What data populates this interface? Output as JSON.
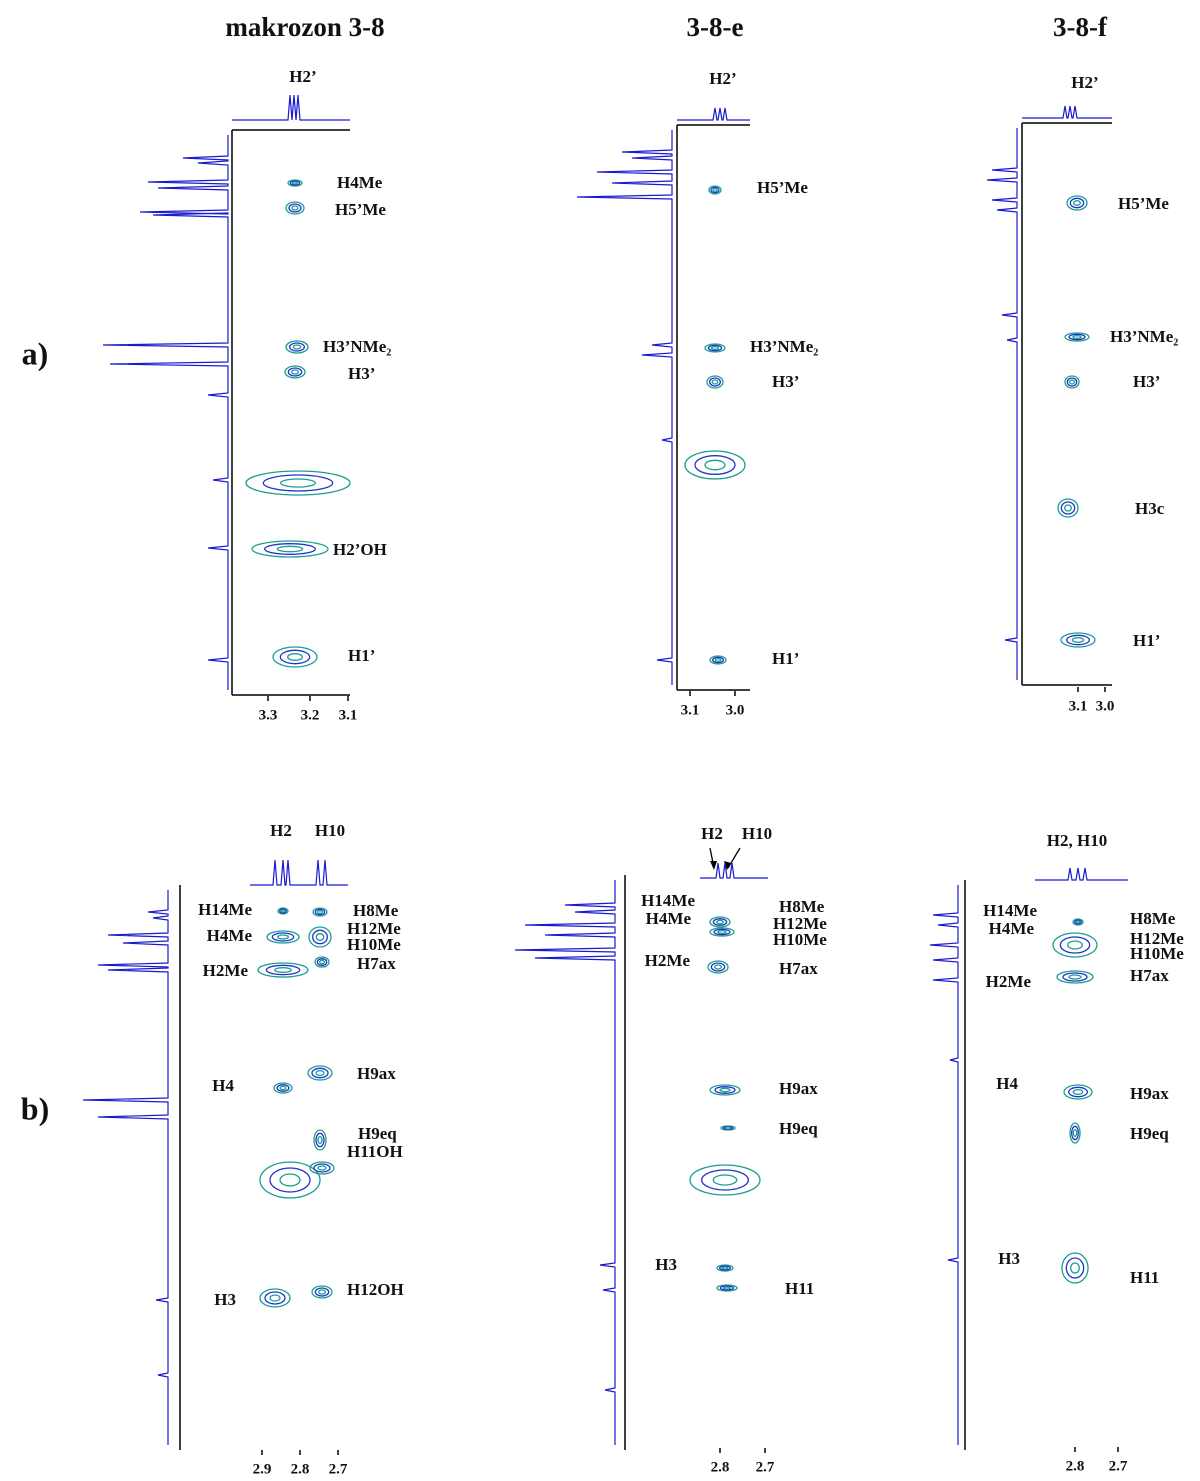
{
  "figure": {
    "columns": [
      "makrozon 3-8",
      "3-8-e",
      "3-8-f"
    ],
    "rows": [
      {
        "label": "a)",
        "panels": [
          {
            "top_labels": [
              "H2’"
            ],
            "peak_labels": [
              "H4Me",
              "H5’Me",
              "H3’NMe₂",
              "H3’",
              "H2’OH",
              "H1’"
            ],
            "x_ticks": [
              "3.3",
              "3.2",
              "3.1"
            ]
          },
          {
            "top_labels": [
              "H2’"
            ],
            "peak_labels": [
              "H5’Me",
              "H3’NMe₂",
              "H3’",
              "H1’"
            ],
            "x_ticks": [
              "3.1",
              "3.0"
            ]
          },
          {
            "top_labels": [
              "H2’"
            ],
            "peak_labels": [
              "H5’Me",
              "H3’NMe₂",
              "H3’",
              "H3c",
              "H1’"
            ],
            "x_ticks": [
              "3.1",
              "3.0"
            ]
          }
        ]
      },
      {
        "label": "b)",
        "panels": [
          {
            "top_labels": [
              "H2",
              "H10"
            ],
            "peak_labels": [
              "H14Me",
              "H4Me",
              "H2Me",
              "H4",
              "H3",
              "H8Me",
              "H12Me",
              "H10Me",
              "H7ax",
              "H9ax",
              "H9eq",
              "H11OH",
              "H12OH"
            ],
            "x_ticks": [
              "2.9",
              "2.8",
              "2.7"
            ]
          },
          {
            "top_labels": [
              "H2",
              "H10"
            ],
            "peak_labels": [
              "H14Me",
              "H4Me",
              "H2Me",
              "H3",
              "H8Me",
              "H12Me",
              "H10Me",
              "H7ax",
              "H9ax",
              "H9eq",
              "H11"
            ],
            "x_ticks": [
              "2.8",
              "2.7"
            ]
          },
          {
            "top_labels": [
              "H2, H10"
            ],
            "peak_labels": [
              "H14Me",
              "H4Me",
              "H2Me",
              "H4",
              "H3",
              "H8Me",
              "H12Me",
              "H10Me",
              "H7ax",
              "H9ax",
              "H9eq",
              "H11"
            ],
            "x_ticks": [
              "2.8",
              "2.7"
            ]
          }
        ]
      }
    ]
  }
}
